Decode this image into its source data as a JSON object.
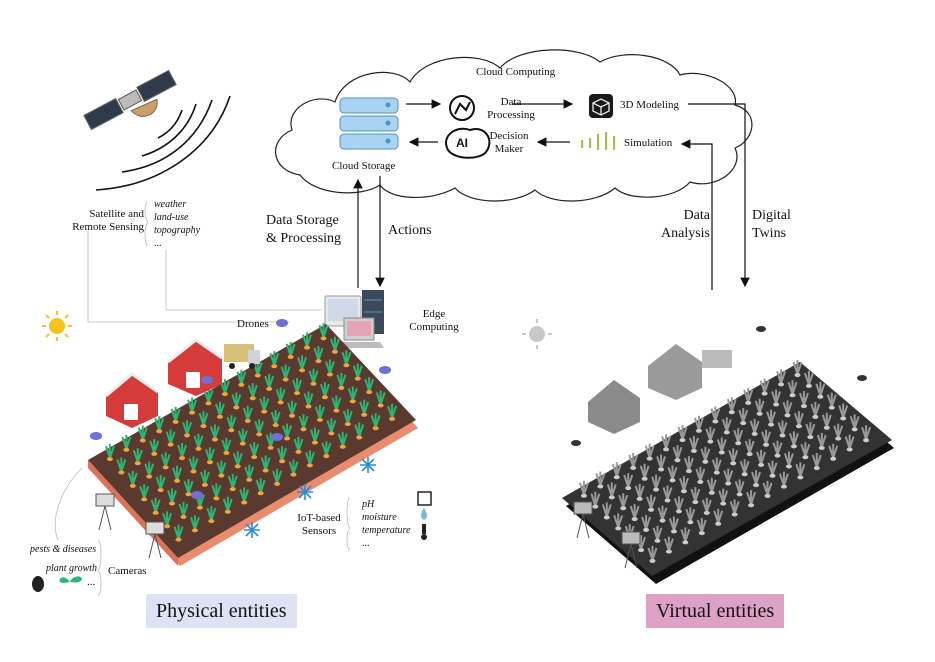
{
  "cloud": {
    "title": "Cloud Computing",
    "storage": "Cloud Storage",
    "data_processing": [
      "Data",
      "Processing"
    ],
    "decision_maker": [
      "Decision",
      "Maker"
    ],
    "modeling": "3D Modeling",
    "simulation": "Simulation",
    "ai_badge": "AI"
  },
  "satellite": {
    "label": [
      "Satellite and",
      "Remote Sensing"
    ],
    "data": [
      "weather",
      "land-use",
      "topography",
      "..."
    ]
  },
  "arrows": {
    "storage": [
      "Data Storage",
      "& Processing"
    ],
    "actions": "Actions",
    "analysis": [
      "Data",
      "Analysis"
    ],
    "twins": [
      "Digital",
      "Twins"
    ]
  },
  "edge": [
    "Edge",
    "Computing"
  ],
  "drones": "Drones",
  "iot": {
    "label": [
      "IoT-based",
      "Sensors"
    ],
    "data": [
      "pH",
      "moisture",
      "temperature",
      "..."
    ]
  },
  "cameras": {
    "label": "Cameras",
    "data": [
      "pests & diseases",
      "plant growth"
    ],
    "more": "..."
  },
  "physical": "Physical entities",
  "virtual": "Virtual entities",
  "colors": {
    "physical_box": "#dde3f3",
    "virtual_box": "#dca1c3",
    "soil": "#5a3a2e",
    "soil_edge": "#e98b6d",
    "leaf": "#2bb673",
    "virtual_field": "#333333"
  },
  "icons": [
    "satellite-icon",
    "sun-icon",
    "drone-icon",
    "barn-icon",
    "truck-icon",
    "server-icon",
    "laptop-icon",
    "sensor-icon",
    "camera-icon",
    "bug-icon",
    "sprout-icon",
    "thermometer-icon",
    "droplet-icon",
    "ph-icon",
    "cube-icon",
    "flow-icon"
  ]
}
